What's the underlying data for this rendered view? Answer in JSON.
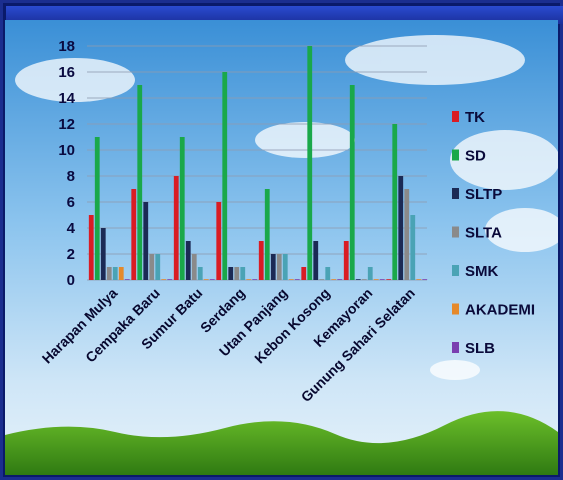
{
  "chart_data": {
    "type": "bar",
    "categories": [
      "Harapan Mulya",
      "Cempaka Baru",
      "Sumur Batu",
      "Serdang",
      "Utan Panjang",
      "Kebon Kosong",
      "Kemayoran",
      "Gunung Sahari Selatan"
    ],
    "series": [
      {
        "name": "TK",
        "color": "#d91c24",
        "values": [
          5,
          7,
          8,
          6,
          3,
          1,
          3,
          0
        ]
      },
      {
        "name": "SD",
        "color": "#1aa84a",
        "values": [
          11,
          15,
          11,
          16,
          7,
          18,
          15,
          12
        ]
      },
      {
        "name": "SLTP",
        "color": "#1b2a55",
        "values": [
          4,
          6,
          3,
          1,
          2,
          3,
          0,
          8
        ]
      },
      {
        "name": "SLTA",
        "color": "#8a8a8a",
        "values": [
          1,
          2,
          2,
          1,
          2,
          0,
          0,
          7
        ]
      },
      {
        "name": "SMK",
        "color": "#4aa3b5",
        "values": [
          1,
          2,
          1,
          1,
          2,
          1,
          1,
          5
        ]
      },
      {
        "name": "AKADEMI",
        "color": "#e5892b",
        "values": [
          1,
          0,
          0,
          0,
          0,
          0,
          0,
          0
        ]
      },
      {
        "name": "SLB",
        "color": "#7a3fb0",
        "values": [
          0,
          0,
          0,
          0,
          0,
          0,
          0,
          0
        ]
      }
    ],
    "ylim": [
      0,
      18
    ],
    "yticks": [
      0,
      2,
      4,
      6,
      8,
      10,
      12,
      14,
      16,
      18
    ],
    "grid": true,
    "legend": "right"
  }
}
